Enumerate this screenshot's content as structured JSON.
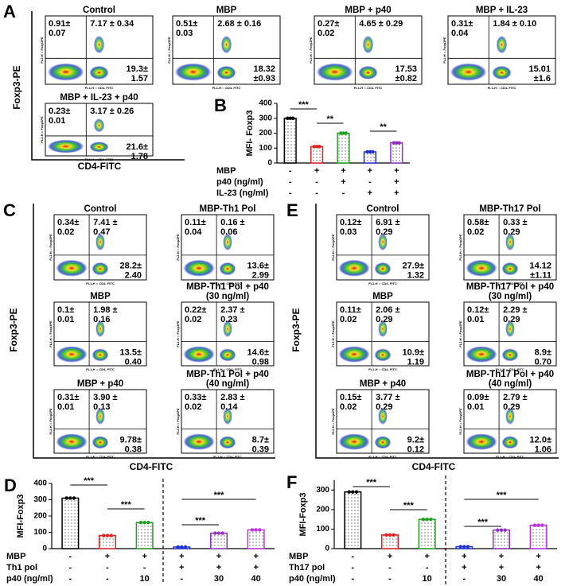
{
  "plot_axes": {
    "x": "FL1-H :: CD4- FITC",
    "y": "FL2-H :: Foxp3PE"
  },
  "panel_a": {
    "label": "A",
    "y_axis": "Foxp3-PE",
    "x_axis": "CD4-FITC",
    "plots": [
      {
        "title": [
          "Control"
        ],
        "ul": [
          "0.91±",
          "0.07"
        ],
        "ur": [
          "7.17 ± 0.34"
        ],
        "lr": [
          "19.3±",
          "1.57"
        ]
      },
      {
        "title": [
          "MBP"
        ],
        "ul": [
          "0.51±",
          "0.03"
        ],
        "ur": [
          "2.68 ± 0.16"
        ],
        "lr": [
          "18.32",
          "±0.93"
        ]
      },
      {
        "title": [
          "MBP + p40"
        ],
        "ul": [
          "0.27±",
          "0.02"
        ],
        "ur": [
          "4.65 ± 0.29"
        ],
        "lr": [
          "17.53",
          "±0.82"
        ]
      },
      {
        "title": [
          "MBP + IL-23"
        ],
        "ul": [
          "0.31±",
          "0.04"
        ],
        "ur": [
          "1.84 ± 0.10"
        ],
        "lr": [
          "15.01",
          "±1.6"
        ]
      },
      {
        "title": [
          "MBP + IL-23 + p40"
        ],
        "ul": [
          "0.23±",
          "0.01"
        ],
        "ur": [
          "3.17 ± 0.26"
        ],
        "lr": [
          "21.6±",
          "1.78"
        ]
      }
    ]
  },
  "panel_b": {
    "label": "B",
    "y_label": "MFI- Foxp3",
    "ylim": [
      0,
      400
    ],
    "yticks": [
      0,
      100,
      200,
      300,
      400
    ],
    "values": [
      300,
      110,
      200,
      75,
      135
    ],
    "colors": [
      "#000000",
      "#e02020",
      "#20a020",
      "#2030d0",
      "#9030c0"
    ],
    "significance": [
      "***",
      "**",
      "**"
    ],
    "rows": [
      {
        "label": "MBP",
        "values": [
          "-",
          "+",
          "+",
          "+",
          "+"
        ]
      },
      {
        "label": "p40 (ng/ml)",
        "values": [
          "-",
          "-",
          "+",
          "-",
          "+"
        ]
      },
      {
        "label": "IL-23 (ng/ml)",
        "values": [
          "-",
          "-",
          "-",
          "+",
          "+"
        ]
      }
    ]
  },
  "panel_c": {
    "label": "C",
    "y_axis": "Foxp3-PE",
    "x_axis": "CD4-FITC",
    "plots": [
      {
        "title": [
          "Control"
        ],
        "ul": [
          "0.34±",
          "0.02"
        ],
        "ur": [
          "7.41 ±",
          "0.47"
        ],
        "lr": [
          "28.2±",
          "2.40"
        ]
      },
      {
        "title": [
          "MBP-Th1 Pol"
        ],
        "ul": [
          "0.11±",
          "0.04"
        ],
        "ur": [
          "0.16 ±",
          "0.06"
        ],
        "lr": [
          "13.6±",
          "2.99"
        ]
      },
      {
        "title": [
          "MBP"
        ],
        "ul": [
          "0.1±",
          "0.01"
        ],
        "ur": [
          "1.98 ±",
          "0.16"
        ],
        "lr": [
          "13.5±",
          "0.40"
        ]
      },
      {
        "title": [
          "MBP-Th1 Pol + p40",
          "(30 ng/ml)"
        ],
        "ul": [
          "0.22±",
          "0.02"
        ],
        "ur": [
          "2.37 ±",
          "0.23"
        ],
        "lr": [
          "14.6±",
          "0.98"
        ]
      },
      {
        "title": [
          "MBP + p40"
        ],
        "ul": [
          "0.31±",
          "0.01"
        ],
        "ur": [
          "3.90 ±",
          "0.13"
        ],
        "lr": [
          "9.78±",
          "0.38"
        ]
      },
      {
        "title": [
          "MBP-Th1 Pol + p40",
          "(40 ng/ml)"
        ],
        "ul": [
          "0.33±",
          "0.02"
        ],
        "ur": [
          "2.83 ±",
          "0.14"
        ],
        "lr": [
          "8.7±",
          "0.39"
        ]
      }
    ]
  },
  "panel_e": {
    "label": "E",
    "y_axis": "Foxp3-PE",
    "x_axis": "CD4-FITC",
    "plots": [
      {
        "title": [
          "Control"
        ],
        "ul": [
          "0.12±",
          "0.03"
        ],
        "ur": [
          "6.91 ±",
          "0.29"
        ],
        "lr": [
          "27.9±",
          "1.32"
        ]
      },
      {
        "title": [
          "MBP-Th17 Pol"
        ],
        "ul": [
          "0.58±",
          "0.02"
        ],
        "ur": [
          "0.33 ±",
          "0.29"
        ],
        "lr": [
          "14.12",
          "±1.11"
        ]
      },
      {
        "title": [
          "MBP"
        ],
        "ul": [
          "0.11±",
          "0.02"
        ],
        "ur": [
          "2.06 ±",
          "0.29"
        ],
        "lr": [
          "10.9±",
          "1.19"
        ]
      },
      {
        "title": [
          "MBP-Th17 Pol + p40",
          "(30 ng/ml)"
        ],
        "ul": [
          "0.12±",
          "0.01"
        ],
        "ur": [
          "2.29 ±",
          "0.29"
        ],
        "lr": [
          "8.9±",
          "0.70"
        ]
      },
      {
        "title": [
          "MBP + p40"
        ],
        "ul": [
          "0.15±",
          "0.02"
        ],
        "ur": [
          "3.77 ±",
          "0.29"
        ],
        "lr": [
          "9.2±",
          "0.12"
        ]
      },
      {
        "title": [
          "MBP-Th17 Pol + p40",
          "(40 ng/ml)"
        ],
        "ul": [
          "0.09±",
          "0.01"
        ],
        "ur": [
          "2.79 ±",
          "0.29"
        ],
        "lr": [
          "12.0±",
          "1.06"
        ]
      }
    ]
  },
  "panel_d": {
    "label": "D",
    "y_label": "MFI-Foxp3",
    "ylim": [
      0,
      400
    ],
    "yticks": [
      0,
      100,
      200,
      300,
      400
    ],
    "values": [
      310,
      80,
      160,
      10,
      95,
      115
    ],
    "colors": [
      "#000000",
      "#e02020",
      "#20a020",
      "#2030d0",
      "#9030c0",
      "#c030e0"
    ],
    "significance": [
      "***",
      "***",
      "***",
      "***"
    ],
    "rows": [
      {
        "label": "MBP",
        "values": [
          "-",
          "+",
          "+",
          "+",
          "+",
          "+"
        ]
      },
      {
        "label": "Th1 pol",
        "values": [
          "-",
          "-",
          "-",
          "+",
          "+",
          "+"
        ]
      },
      {
        "label": "p40 (ng/ml)",
        "values": [
          "-",
          "-",
          "10",
          "-",
          "30",
          "40"
        ]
      }
    ]
  },
  "panel_f": {
    "label": "F",
    "y_label": "MFI-Foxp3",
    "ylim": [
      0,
      350
    ],
    "yticks": [
      0,
      100,
      200,
      300
    ],
    "values": [
      290,
      70,
      150,
      10,
      95,
      120
    ],
    "colors": [
      "#000000",
      "#e02020",
      "#20a020",
      "#2030d0",
      "#9030c0",
      "#c030e0"
    ],
    "significance": [
      "***",
      "***",
      "***",
      "***"
    ],
    "rows": [
      {
        "label": "MBP",
        "values": [
          "-",
          "+",
          "+",
          "+",
          "+",
          "+"
        ]
      },
      {
        "label": "Th17 pol",
        "values": [
          "-",
          "-",
          "-",
          "+",
          "+",
          "+"
        ]
      },
      {
        "label": "p40 (ng/ml)",
        "values": [
          "-",
          "-",
          "10",
          "-",
          "30",
          "40"
        ]
      }
    ]
  }
}
